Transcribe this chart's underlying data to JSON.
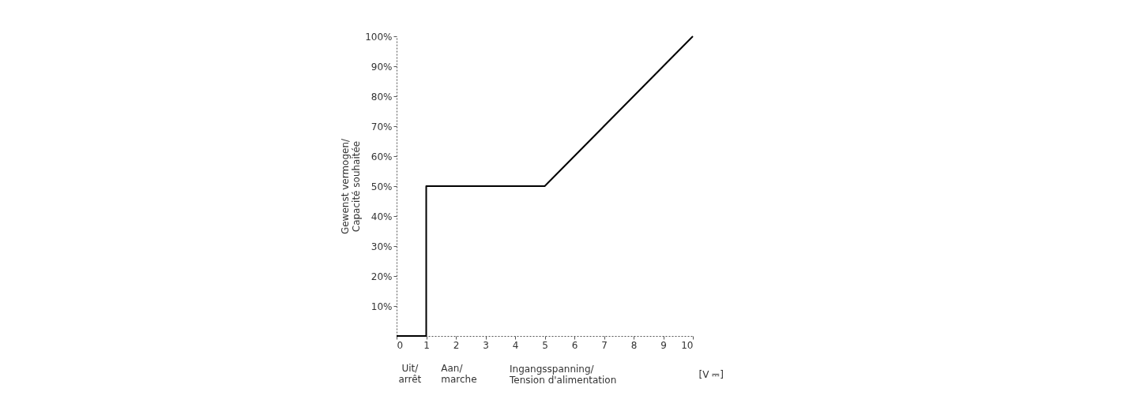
{
  "chart_data": {
    "type": "line",
    "x": [
      0,
      1,
      1,
      5,
      10
    ],
    "series": [
      {
        "color": "#000000",
        "values": [
          0,
          0,
          50,
          50,
          100
        ]
      }
    ],
    "xlim": [
      0,
      10
    ],
    "xticks": [
      0,
      1,
      2,
      3,
      4,
      5,
      6,
      7,
      8,
      9,
      10
    ],
    "ylim": [
      0,
      100
    ],
    "yticks": [
      {
        "value": 10,
        "label": "10%"
      },
      {
        "value": 20,
        "label": "20%"
      },
      {
        "value": 30,
        "label": "30%"
      },
      {
        "value": 40,
        "label": "40%"
      },
      {
        "value": 50,
        "label": "50%"
      },
      {
        "value": 60,
        "label": "60%"
      },
      {
        "value": 70,
        "label": "70%"
      },
      {
        "value": 80,
        "label": "80%"
      },
      {
        "value": 90,
        "label": "90%"
      },
      {
        "value": 100,
        "label": "100%"
      }
    ],
    "xlabel": "Ingangsspanning/ Tension d'alimentation",
    "ylabel": "Gewenst vermogen/ Capacité souhaitée",
    "annotations": [
      "Uit/ arrêt",
      "Aan/ marche",
      "[V ⎓]"
    ],
    "grid": false,
    "marker": "none",
    "line_style": "solid"
  }
}
